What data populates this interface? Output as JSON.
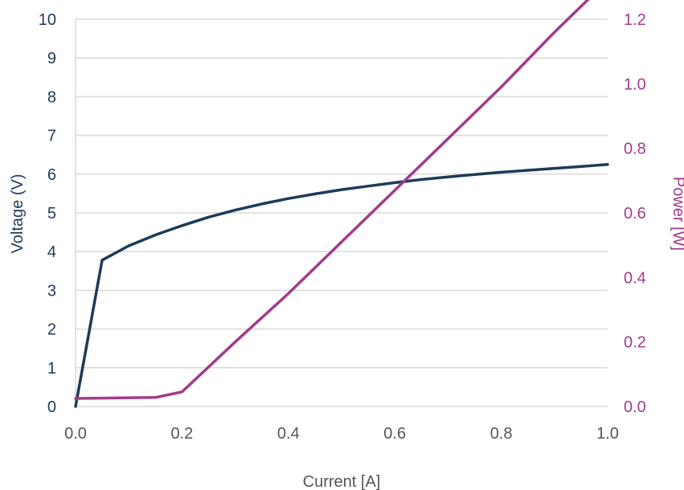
{
  "chart_data": {
    "type": "line",
    "title": "",
    "xlabel": "Current [A]",
    "ylabel": "Voltage (V)",
    "y2label": "Power [W]",
    "xlim": [
      0.0,
      1.0
    ],
    "ylim": [
      0,
      10
    ],
    "y2lim": [
      0.0,
      1.2
    ],
    "grid": true,
    "legend": "none",
    "x_ticks": [
      "0.0",
      "0.2",
      "0.4",
      "0.6",
      "0.8",
      "1.0"
    ],
    "y_ticks": [
      "0",
      "1",
      "2",
      "3",
      "4",
      "5",
      "6",
      "7",
      "8",
      "9",
      "10"
    ],
    "y2_ticks": [
      "0.0",
      "0.2",
      "0.4",
      "0.6",
      "0.8",
      "1.0",
      "1.2"
    ],
    "colors": {
      "voltage": "#1f3a5a",
      "power": "#a23b8b",
      "grid": "#d9d9d9"
    },
    "series": [
      {
        "axis": "left",
        "color": "#1f3a5a",
        "x": [
          0.0,
          0.05,
          0.1,
          0.15,
          0.2,
          0.25,
          0.3,
          0.35,
          0.4,
          0.45,
          0.5,
          0.55,
          0.6,
          0.65,
          0.7,
          0.75,
          0.8,
          0.85,
          0.9,
          0.95,
          1.0
        ],
        "values": [
          0.0,
          3.78,
          4.15,
          4.43,
          4.67,
          4.89,
          5.07,
          5.23,
          5.37,
          5.49,
          5.6,
          5.69,
          5.78,
          5.86,
          5.93,
          5.99,
          6.05,
          6.1,
          6.15,
          6.2,
          6.25
        ]
      },
      {
        "axis": "right",
        "color": "#a23b8b",
        "x": [
          0.0,
          0.15,
          0.2,
          0.3,
          0.4,
          0.5,
          0.6,
          0.7,
          0.8,
          0.9,
          1.0
        ],
        "values": [
          0.025,
          0.028,
          0.045,
          0.2,
          0.35,
          0.51,
          0.67,
          0.83,
          0.99,
          1.16,
          1.32
        ]
      }
    ]
  }
}
